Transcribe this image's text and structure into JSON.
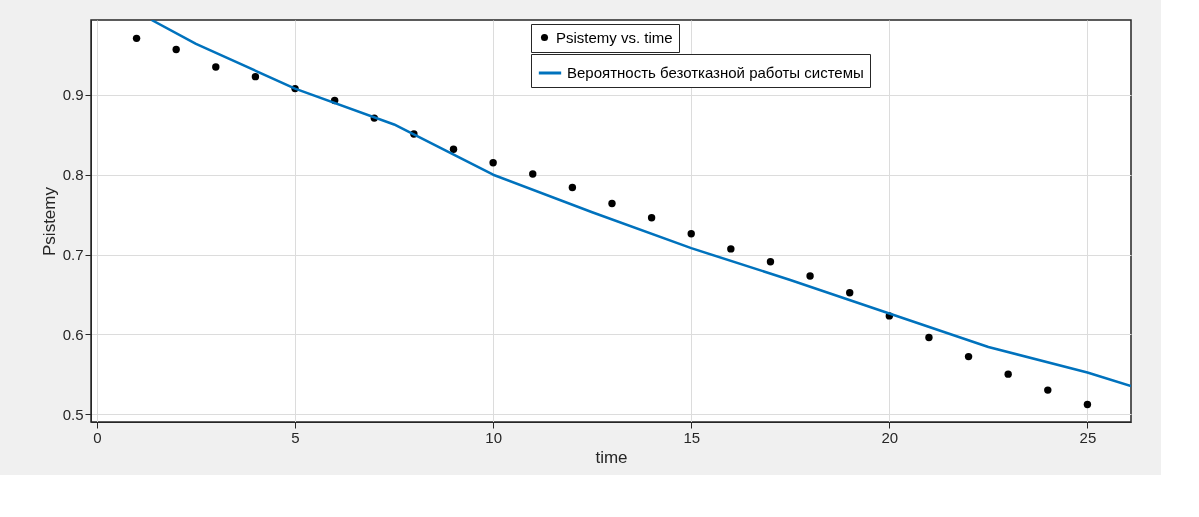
{
  "chart_data": {
    "type": "scatter",
    "xlabel": "time",
    "ylabel": "Psistemy",
    "xlim": [
      -0.15,
      26.1
    ],
    "ylim": [
      0.49,
      0.994
    ],
    "xticks": [
      0,
      5,
      10,
      15,
      20,
      25
    ],
    "yticks": [
      0.5,
      0.6,
      0.7,
      0.8,
      0.9
    ],
    "grid": true,
    "legend": "top right",
    "series": [
      {
        "name": "Psistemy vs. time",
        "marker": "circle",
        "color": "#000000",
        "x": [
          1,
          2,
          3,
          4,
          5,
          6,
          7,
          8,
          9,
          10,
          11,
          12,
          13,
          14,
          15,
          16,
          17,
          18,
          19,
          20,
          21,
          22,
          23,
          24,
          25
        ],
        "values": [
          0.971,
          0.957,
          0.935,
          0.923,
          0.908,
          0.893,
          0.871,
          0.851,
          0.832,
          0.815,
          0.801,
          0.784,
          0.764,
          0.746,
          0.726,
          0.707,
          0.691,
          0.673,
          0.652,
          0.623,
          0.596,
          0.572,
          0.55,
          0.53,
          0.512
        ]
      },
      {
        "name": "Вероятность безотказной работы системы",
        "type": "line",
        "color": "#0072bd",
        "x": [
          1.38,
          2.5,
          5,
          7.5,
          10,
          12.5,
          15,
          17.5,
          20,
          22.5,
          25,
          26.1
        ],
        "values": [
          0.994,
          0.964,
          0.908,
          0.863,
          0.8,
          0.753,
          0.708,
          0.668,
          0.626,
          0.584,
          0.552,
          0.535
        ]
      }
    ]
  }
}
